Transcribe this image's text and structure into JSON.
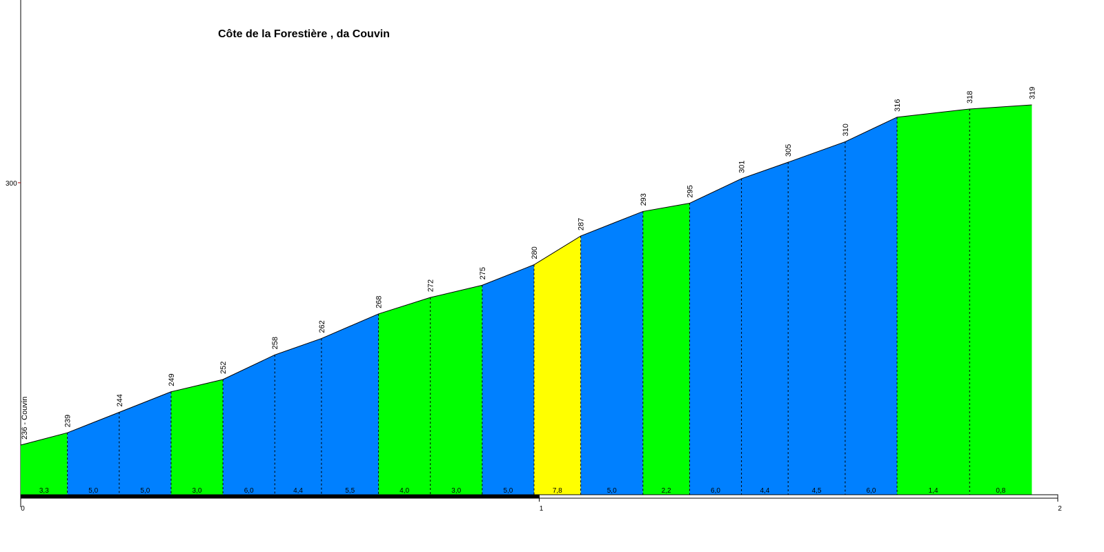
{
  "chart_data": {
    "type": "area",
    "title": "Côte de la Forestière , da Couvin",
    "xlabel": "",
    "ylabel": "",
    "x_unit": "km",
    "y_unit": "m",
    "xlim": [
      0,
      2
    ],
    "ylim": [
      220,
      340
    ],
    "x_ticks": [
      0,
      1,
      2
    ],
    "x_tick_labels": [
      "0",
      "1",
      "2"
    ],
    "y_ticks": [
      300
    ],
    "y_tick_labels": [
      "300"
    ],
    "start_label": "236 - Couvin",
    "points": [
      {
        "x": 0.0,
        "elev": 236,
        "label": "236 - Couvin"
      },
      {
        "x": 0.09,
        "elev": 239,
        "label": "239"
      },
      {
        "x": 0.19,
        "elev": 244,
        "label": "244"
      },
      {
        "x": 0.29,
        "elev": 249,
        "label": "249"
      },
      {
        "x": 0.39,
        "elev": 252,
        "label": "252"
      },
      {
        "x": 0.49,
        "elev": 258,
        "label": "258"
      },
      {
        "x": 0.58,
        "elev": 262,
        "label": "262"
      },
      {
        "x": 0.69,
        "elev": 268,
        "label": "268"
      },
      {
        "x": 0.79,
        "elev": 272,
        "label": "272"
      },
      {
        "x": 0.89,
        "elev": 275,
        "label": "275"
      },
      {
        "x": 0.99,
        "elev": 280,
        "label": "280"
      },
      {
        "x": 1.08,
        "elev": 287,
        "label": "287"
      },
      {
        "x": 1.2,
        "elev": 293,
        "label": "293"
      },
      {
        "x": 1.29,
        "elev": 295,
        "label": "295"
      },
      {
        "x": 1.39,
        "elev": 301,
        "label": "301"
      },
      {
        "x": 1.48,
        "elev": 305,
        "label": "305"
      },
      {
        "x": 1.59,
        "elev": 310,
        "label": "310"
      },
      {
        "x": 1.69,
        "elev": 316,
        "label": "316"
      },
      {
        "x": 1.83,
        "elev": 318,
        "label": "318"
      },
      {
        "x": 1.95,
        "elev": 319,
        "label": "319"
      }
    ],
    "segments": [
      {
        "grade": "3,3",
        "color": "#00ff00"
      },
      {
        "grade": "5,0",
        "color": "#0080ff"
      },
      {
        "grade": "5,0",
        "color": "#0080ff"
      },
      {
        "grade": "3,0",
        "color": "#00ff00"
      },
      {
        "grade": "6,0",
        "color": "#0080ff"
      },
      {
        "grade": "4,4",
        "color": "#0080ff"
      },
      {
        "grade": "5,5",
        "color": "#0080ff"
      },
      {
        "grade": "4,0",
        "color": "#00ff00"
      },
      {
        "grade": "3,0",
        "color": "#00ff00"
      },
      {
        "grade": "5,0",
        "color": "#0080ff"
      },
      {
        "grade": "7,8",
        "color": "#ffff00"
      },
      {
        "grade": "5,0",
        "color": "#0080ff"
      },
      {
        "grade": "2,2",
        "color": "#00ff00"
      },
      {
        "grade": "6,0",
        "color": "#0080ff"
      },
      {
        "grade": "4,4",
        "color": "#0080ff"
      },
      {
        "grade": "4,5",
        "color": "#0080ff"
      },
      {
        "grade": "6,0",
        "color": "#0080ff"
      },
      {
        "grade": "1,4",
        "color": "#00ff00"
      },
      {
        "grade": "0,8",
        "color": "#00ff00"
      }
    ],
    "km_scale": [
      {
        "from": 0,
        "to": 1,
        "fill": "#000000"
      },
      {
        "from": 1,
        "to": 2,
        "fill": "#ffffff"
      }
    ],
    "grid": false,
    "legend": "none"
  }
}
